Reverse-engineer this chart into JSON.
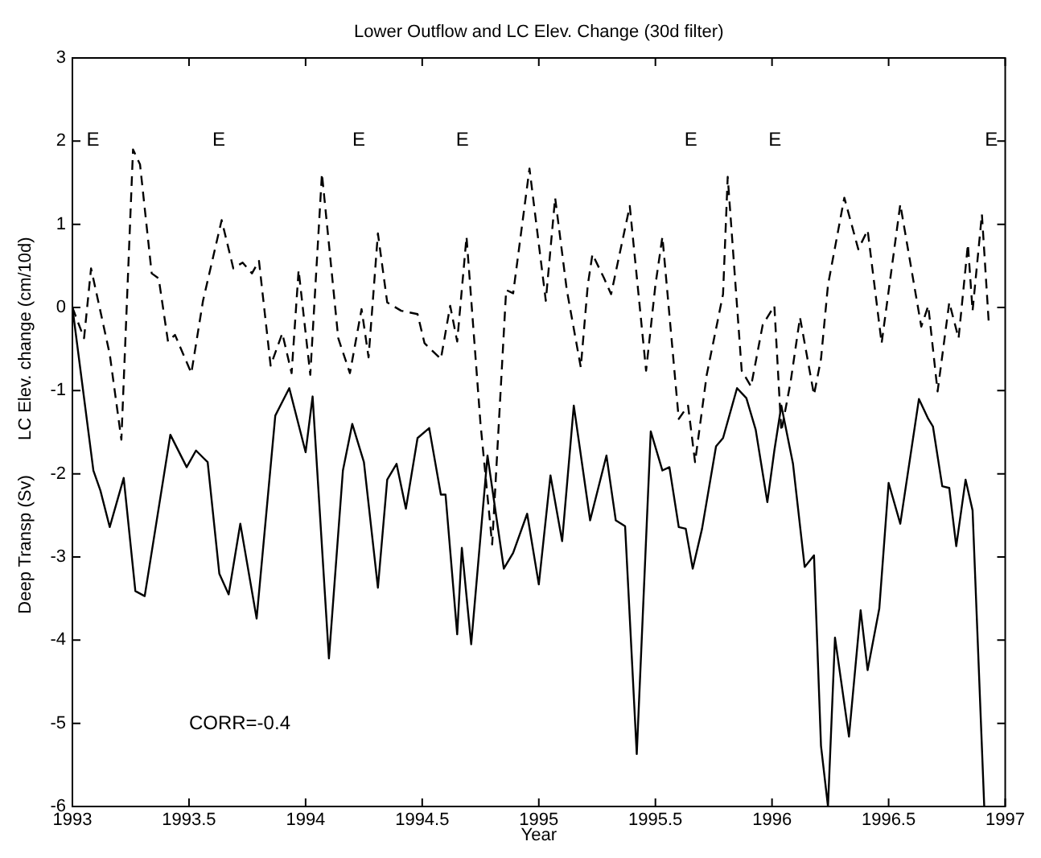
{
  "chart_data": {
    "type": "line",
    "title": "Lower Outflow and LC Elev. Change (30d filter)",
    "xlabel": "Year",
    "ylabel": "LC Elev. change (cm/10d)",
    "y2label": "Deep Transp (Sv)",
    "xlim": [
      1993,
      1997
    ],
    "xticks": [
      1993,
      1993.5,
      1994,
      1994.5,
      1995,
      1995.5,
      1996,
      1996.5,
      1997
    ],
    "ylim": [
      -6,
      3
    ],
    "yticks": [
      -6,
      -5,
      -4,
      -3,
      -2,
      -1,
      0,
      1,
      2,
      3
    ],
    "grid": false,
    "legend": false,
    "marker": "none",
    "annotations": [
      "E",
      "E",
      "E",
      "E",
      "E",
      "E",
      "E",
      "CORR=-0.4"
    ],
    "series": [
      {
        "color": "#000000",
        "line_style": "dashed",
        "x": [
          1993.0,
          1993.05,
          1993.08,
          1993.16,
          1993.21,
          1993.26,
          1993.29,
          1993.34,
          1993.37,
          1993.41,
          1993.44,
          1993.51,
          1993.56,
          1993.64,
          1993.69,
          1993.73,
          1993.77,
          1993.8,
          1993.85,
          1993.9,
          1993.94,
          1993.97,
          1994.02,
          1994.07,
          1994.14,
          1994.19,
          1994.24,
          1994.27,
          1994.31,
          1994.35,
          1994.41,
          1994.48,
          1994.51,
          1994.58,
          1994.62,
          1994.65,
          1994.69,
          1994.75,
          1994.8,
          1994.86,
          1994.89,
          1994.96,
          1995.03,
          1995.07,
          1995.12,
          1995.18,
          1995.21,
          1995.23,
          1995.28,
          1995.31,
          1995.39,
          1995.46,
          1995.5,
          1995.53,
          1995.6,
          1995.64,
          1995.67,
          1995.72,
          1995.79,
          1995.81,
          1995.87,
          1995.91,
          1995.96,
          1996.01,
          1996.04,
          1996.08,
          1996.12,
          1996.18,
          1996.21,
          1996.24,
          1996.31,
          1996.37,
          1996.41,
          1996.47,
          1996.55,
          1996.64,
          1996.67,
          1996.71,
          1996.76,
          1996.8,
          1996.84,
          1996.86,
          1996.9,
          1996.93
        ],
        "values": [
          0,
          -0.37,
          0.47,
          -0.56,
          -1.59,
          1.9,
          1.72,
          0.41,
          0.35,
          -0.41,
          -0.33,
          -0.79,
          0.08,
          1.05,
          0.47,
          0.54,
          0.41,
          0.56,
          -0.7,
          -0.31,
          -0.79,
          0.45,
          -0.81,
          1.61,
          -0.37,
          -0.79,
          -0.02,
          -0.6,
          0.89,
          0.06,
          -0.04,
          -0.08,
          -0.43,
          -0.62,
          0.02,
          -0.41,
          0.85,
          -1.4,
          -2.85,
          0.21,
          0.17,
          1.67,
          0.08,
          1.32,
          0.21,
          -0.72,
          0.27,
          0.64,
          0.35,
          0.16,
          1.22,
          -0.76,
          0.27,
          0.85,
          -1.34,
          -1.18,
          -1.86,
          -0.81,
          0.16,
          1.57,
          -0.76,
          -0.95,
          -0.21,
          0.02,
          -1.49,
          -0.89,
          -0.12,
          -1.05,
          -0.62,
          0.27,
          1.32,
          0.7,
          0.93,
          -0.43,
          1.24,
          -0.23,
          0.02,
          -1.01,
          0.06,
          -0.37,
          0.76,
          -0.04,
          1.12,
          -0.21
        ]
      },
      {
        "color": "#000000",
        "line_style": "solid",
        "x": [
          1993.0,
          1993.09,
          1993.12,
          1993.16,
          1993.22,
          1993.27,
          1993.31,
          1993.42,
          1993.49,
          1993.53,
          1993.58,
          1993.63,
          1993.67,
          1993.72,
          1993.79,
          1993.87,
          1993.93,
          1994.0,
          1994.03,
          1994.1,
          1994.16,
          1994.2,
          1994.25,
          1994.31,
          1994.35,
          1994.39,
          1994.43,
          1994.48,
          1994.53,
          1994.58,
          1994.6,
          1994.65,
          1994.67,
          1994.71,
          1994.78,
          1994.82,
          1994.85,
          1994.89,
          1994.95,
          1995.0,
          1995.05,
          1995.1,
          1995.15,
          1995.22,
          1995.29,
          1995.33,
          1995.37,
          1995.42,
          1995.48,
          1995.53,
          1995.56,
          1995.6,
          1995.63,
          1995.66,
          1995.7,
          1995.76,
          1995.79,
          1995.85,
          1995.89,
          1995.93,
          1995.98,
          1996.01,
          1996.04,
          1996.09,
          1996.14,
          1996.18,
          1996.21,
          1996.24,
          1996.27,
          1996.33,
          1996.38,
          1996.41,
          1996.46,
          1996.5,
          1996.55,
          1996.63,
          1996.67,
          1996.69,
          1996.73,
          1996.76,
          1996.79,
          1996.83,
          1996.86,
          1996.91
        ],
        "values": [
          0,
          -1.96,
          -2.2,
          -2.64,
          -2.05,
          -3.41,
          -3.47,
          -1.53,
          -1.92,
          -1.72,
          -1.86,
          -3.2,
          -3.45,
          -2.6,
          -3.74,
          -1.3,
          -0.97,
          -1.74,
          -1.07,
          -4.22,
          -1.96,
          -1.4,
          -1.86,
          -3.37,
          -2.07,
          -1.88,
          -2.42,
          -1.57,
          -1.45,
          -2.25,
          -2.25,
          -3.93,
          -2.89,
          -4.05,
          -1.78,
          -2.56,
          -3.14,
          -2.95,
          -2.48,
          -3.33,
          -2.02,
          -2.81,
          -1.18,
          -2.56,
          -1.78,
          -2.56,
          -2.63,
          -5.37,
          -1.49,
          -1.96,
          -1.92,
          -2.64,
          -2.66,
          -3.14,
          -2.66,
          -1.67,
          -1.57,
          -0.97,
          -1.09,
          -1.47,
          -2.34,
          -1.72,
          -1.18,
          -1.88,
          -3.12,
          -2.98,
          -5.27,
          -6,
          -3.97,
          -5.16,
          -3.64,
          -4.36,
          -3.62,
          -2.11,
          -2.6,
          -1.1,
          -1.34,
          -1.43,
          -2.15,
          -2.17,
          -2.87,
          -2.07,
          -2.44,
          -6
        ]
      }
    ]
  }
}
